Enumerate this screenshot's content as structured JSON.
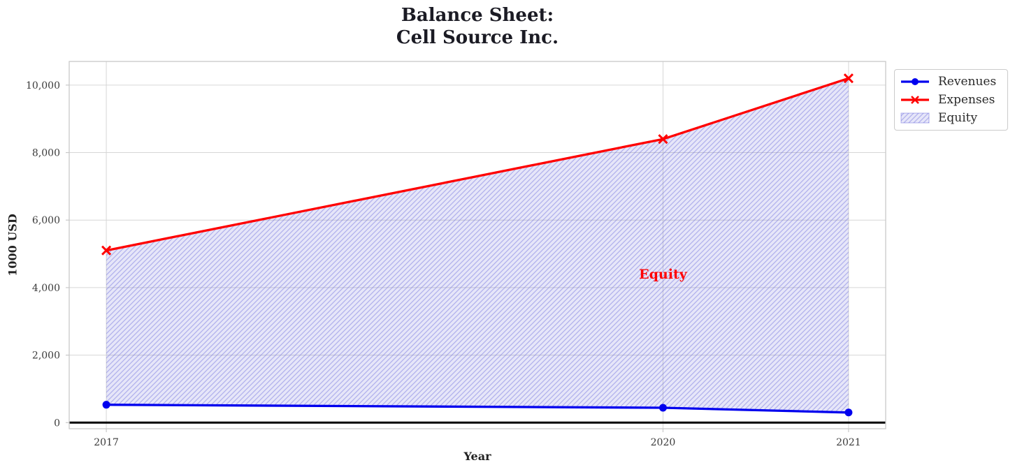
{
  "title": {
    "line1": "Balance Sheet:",
    "line2": "Cell Source Inc."
  },
  "chart_data": {
    "type": "area",
    "x": [
      2017,
      2020,
      2021
    ],
    "series": [
      {
        "name": "Revenues",
        "color": "#0000ee",
        "marker": "circle",
        "values": [
          530,
          440,
          300
        ]
      },
      {
        "name": "Expenses",
        "color": "#ff0000",
        "marker": "x",
        "values": [
          5100,
          8400,
          10200
        ]
      }
    ],
    "fill_between": {
      "label": "Equity",
      "upper": "Expenses",
      "lower": "Revenues",
      "hatch": "//",
      "face_rgba": "rgba(88,88,214,0.15)",
      "hatch_rgba": "rgba(88,88,214,0.38)",
      "edge_rgba": "rgba(88,88,214,0.45)"
    },
    "annotation": {
      "text": "Equity",
      "x": 2020,
      "y": 4400,
      "color": "#ff0000"
    },
    "xlabel": "Year",
    "ylabel": "1000 USD",
    "xlim": [
      2016.8,
      2021.2
    ],
    "ylim": [
      -180,
      10700
    ],
    "xticks": [
      2017,
      2020,
      2021
    ],
    "xtick_labels": [
      "2017",
      "2020",
      "2021"
    ],
    "yticks": [
      0,
      2000,
      4000,
      6000,
      8000,
      10000
    ],
    "ytick_labels": [
      "0",
      "2,000",
      "4,000",
      "6,000",
      "8,000",
      "10,000"
    ],
    "grid": true,
    "zero_line": {
      "y": 0,
      "color": "#000000"
    },
    "legend": {
      "position": "outside-top-right",
      "entries": [
        "Revenues",
        "Expenses",
        "Equity"
      ]
    }
  },
  "style_colors": {
    "grid": "#d6d6d6",
    "spine": "#c8c8c8",
    "tick_text": "#3a3a3a",
    "title_text": "#1b1b24"
  }
}
